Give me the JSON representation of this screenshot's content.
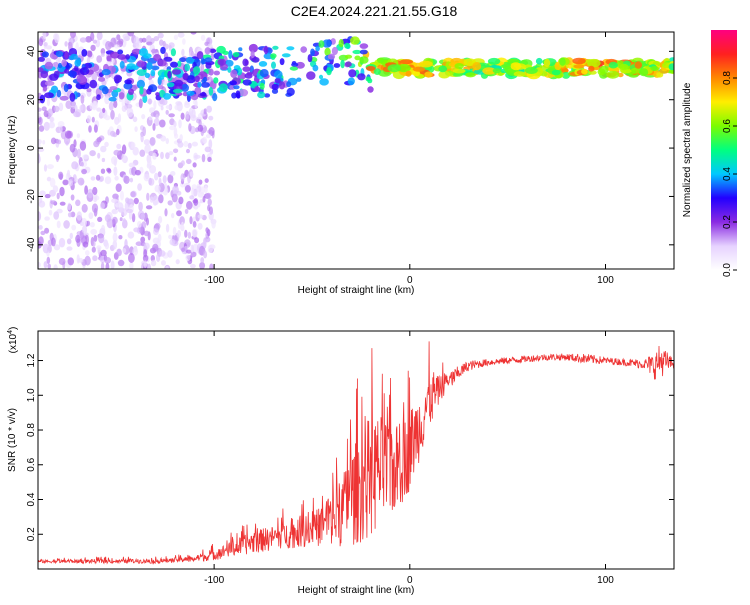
{
  "title": "C2E4.2024.221.21.55.G18",
  "colors": {
    "snr_line": "#ee3333",
    "frame": "#000000",
    "spectrum_low": "#b78cf0",
    "spectrum_core": "#5a00e6",
    "colorbar_stops": [
      "#ffffff",
      "#e6d2ff",
      "#8a2be2",
      "#2200ff",
      "#00c8ff",
      "#00ff80",
      "#7cfc00",
      "#ffee00",
      "#ff8800",
      "#ff2020",
      "#ff0080"
    ]
  },
  "chart_data": [
    {
      "type": "heatmap",
      "xlabel": "Height of straight line (km)",
      "ylabel": "Frequency (Hz)",
      "xlim": [
        -190,
        135
      ],
      "ylim": [
        -50,
        48
      ],
      "x_ticks": [
        -100,
        0,
        100
      ],
      "y_ticks": [
        40,
        20,
        0,
        -20,
        -40
      ],
      "tick_labels_x": [
        "-100",
        "0",
        "100"
      ],
      "tick_labels_y": [
        "40",
        "20",
        "0",
        "-20",
        "-40"
      ],
      "colorbar": {
        "label": "Normalized spectral amplitude",
        "range": [
          0.0,
          1.0
        ],
        "ticks": [
          "0.0",
          "0.2",
          "0.4",
          "0.6",
          "0.8"
        ]
      },
      "ridge": {
        "description_values": "dominant frequency near 30-33 Hz",
        "x": [
          -190,
          -150,
          -100,
          -60,
          -40,
          -30,
          -20,
          0,
          50,
          100,
          135
        ],
        "freq": [
          30,
          30,
          31,
          32,
          35,
          37,
          34,
          33,
          33,
          33,
          33
        ],
        "amplitude": [
          0.35,
          0.4,
          0.45,
          0.5,
          0.55,
          0.6,
          0.85,
          0.9,
          0.7,
          0.9,
          0.75
        ]
      }
    },
    {
      "type": "line",
      "xlabel": "Height of straight line (km)",
      "ylabel": "SNR (10 * v/v)",
      "y_multiplier": "(x10",
      "y_multiplier_exp": "4",
      "y_multiplier_close": ")",
      "xlim": [
        -190,
        135
      ],
      "ylim": [
        0,
        1.37
      ],
      "x_ticks": [
        -100,
        0,
        100
      ],
      "y_ticks": [
        0.2,
        0.4,
        0.6,
        0.8,
        1.0,
        1.2
      ],
      "tick_labels_x": [
        "-100",
        "0",
        "100"
      ],
      "tick_labels_y": [
        "0.2",
        "0.4",
        "0.6",
        "0.8",
        "1.0",
        "1.2"
      ],
      "series": [
        {
          "name": "SNR",
          "x": [
            -190,
            -160,
            -130,
            -110,
            -100,
            -90,
            -80,
            -70,
            -60,
            -50,
            -40,
            -35,
            -30,
            -25,
            -20,
            -15,
            -10,
            -5,
            0,
            5,
            10,
            15,
            20,
            25,
            30,
            40,
            50,
            60,
            70,
            80,
            90,
            100,
            110,
            120,
            125,
            128,
            135
          ],
          "base": [
            0.04,
            0.04,
            0.04,
            0.05,
            0.07,
            0.1,
            0.13,
            0.15,
            0.17,
            0.19,
            0.22,
            0.25,
            0.3,
            0.35,
            0.4,
            0.45,
            0.45,
            0.5,
            0.6,
            0.75,
            0.9,
            1.0,
            1.08,
            1.13,
            1.17,
            1.19,
            1.2,
            1.21,
            1.22,
            1.22,
            1.21,
            1.2,
            1.19,
            1.18,
            1.17,
            1.2,
            1.18
          ],
          "spread": [
            0.01,
            0.015,
            0.015,
            0.02,
            0.04,
            0.06,
            0.08,
            0.09,
            0.1,
            0.12,
            0.18,
            0.25,
            0.35,
            0.4,
            0.45,
            0.4,
            0.35,
            0.3,
            0.3,
            0.25,
            0.2,
            0.1,
            0.06,
            0.04,
            0.03,
            0.02,
            0.02,
            0.02,
            0.02,
            0.02,
            0.03,
            0.02,
            0.02,
            0.03,
            0.08,
            0.1,
            0.02
          ]
        }
      ]
    }
  ]
}
